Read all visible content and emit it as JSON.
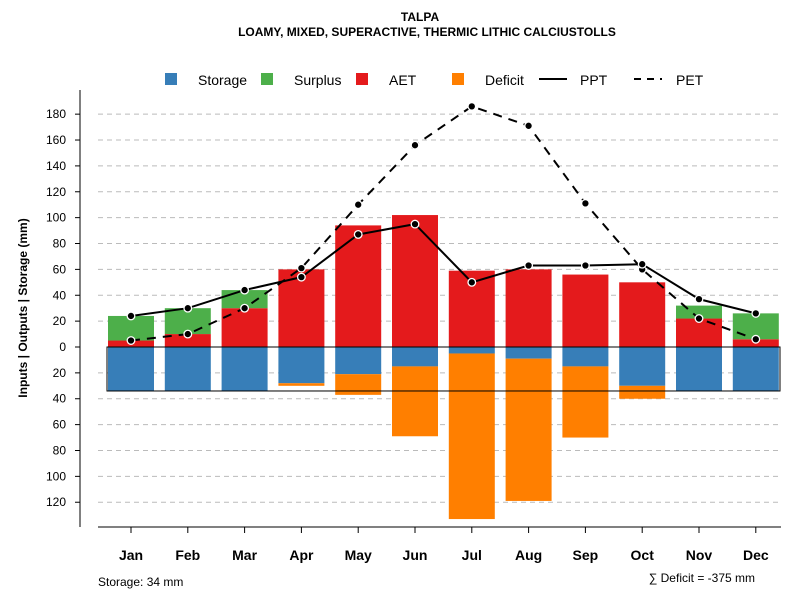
{
  "chart_data": {
    "type": "bar",
    "title": "TALPA",
    "subtitle": "LOAMY, MIXED, SUPERACTIVE, THERMIC LITHIC CALCIUSTOLLS",
    "ylabel": "Inputs | Outputs | Storage    (mm)",
    "xlabel": "",
    "categories": [
      "Jan",
      "Feb",
      "Mar",
      "Apr",
      "May",
      "Jun",
      "Jul",
      "Aug",
      "Sep",
      "Oct",
      "Nov",
      "Dec"
    ],
    "ylim": [
      -140,
      190
    ],
    "y_ticks_positive": [
      "20",
      "40",
      "60",
      "80",
      "100",
      "120",
      "140",
      "160",
      "180"
    ],
    "y_ticks_negative": [
      "20",
      "40",
      "60",
      "80",
      "100",
      "120"
    ],
    "y_tick_zero": "0",
    "legend": [
      "Storage",
      "Surplus",
      "AET",
      "Deficit",
      "PPT",
      "PET"
    ],
    "colors": {
      "storage": "#377EB8",
      "surplus": "#4DAF4A",
      "aet": "#E41A1C",
      "deficit": "#FF7F00",
      "line": "#000000",
      "grid": "#bbbbbb"
    },
    "series": [
      {
        "name": "AET",
        "values": [
          5,
          10,
          30,
          60,
          94,
          102,
          59,
          60,
          56,
          50,
          22,
          6
        ]
      },
      {
        "name": "Surplus",
        "values": [
          19,
          20,
          14,
          0,
          0,
          0,
          0,
          0,
          0,
          0,
          10,
          20
        ]
      },
      {
        "name": "Storage",
        "values": [
          34,
          34,
          34,
          28,
          21,
          15,
          5,
          9,
          15,
          30,
          34,
          34
        ]
      },
      {
        "name": "Deficit",
        "values": [
          0,
          0,
          0,
          2,
          16,
          54,
          128,
          110,
          55,
          10,
          0,
          0
        ]
      },
      {
        "name": "PPT",
        "values": [
          24,
          30,
          44,
          54,
          87,
          95,
          50,
          63,
          63,
          64,
          37,
          26
        ]
      },
      {
        "name": "PET",
        "values": [
          5,
          10,
          30,
          61,
          110,
          156,
          186,
          171,
          111,
          60,
          22,
          6
        ]
      }
    ],
    "storage_capacity": 34
  },
  "footer": {
    "storage": "Storage: 34 mm",
    "deficit": "∑ Deficit = -375 mm"
  }
}
